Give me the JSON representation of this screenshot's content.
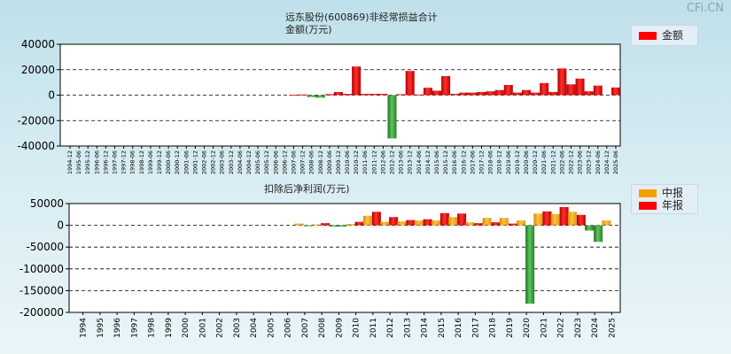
{
  "watermark": "CFi.CN",
  "chart_data": [
    {
      "type": "bar",
      "title": "远东股份(600869)非经常损益合计",
      "ylabel": "金额(万元)",
      "ylim": [
        -40000,
        40000
      ],
      "yticks": [
        40000,
        20000,
        0,
        -20000,
        -40000
      ],
      "grid": true,
      "legend": [
        "金额"
      ],
      "categories": [
        "1994-12",
        "1995-06",
        "1995-12",
        "1996-06",
        "1996-12",
        "1997-06",
        "1997-12",
        "1998-06",
        "1998-12",
        "1999-06",
        "1999-12",
        "2000-06",
        "2000-12",
        "2001-06",
        "2001-12",
        "2002-06",
        "2002-12",
        "2003-06",
        "2003-12",
        "2004-06",
        "2004-12",
        "2005-06",
        "2005-12",
        "2006-06",
        "2006-12",
        "2007-06",
        "2007-12",
        "2008-06",
        "2008-12",
        "2009-06",
        "2009-12",
        "2010-06",
        "2010-12",
        "2011-06",
        "2011-12",
        "2012-06",
        "2012-12",
        "2013-06",
        "2013-12",
        "2014-06",
        "2014-12",
        "2015-06",
        "2015-12",
        "2016-06",
        "2016-12",
        "2017-06",
        "2017-12",
        "2018-06",
        "2018-12",
        "2019-06",
        "2019-12",
        "2020-06",
        "2020-12",
        "2021-06",
        "2021-12",
        "2022-06",
        "2022-12",
        "2023-06",
        "2023-12",
        "2024-06",
        "2024-12",
        "2025-06"
      ],
      "values": [
        null,
        null,
        null,
        null,
        null,
        null,
        null,
        null,
        null,
        null,
        null,
        null,
        null,
        null,
        null,
        null,
        null,
        null,
        null,
        null,
        null,
        null,
        null,
        null,
        null,
        300,
        500,
        -1500,
        -2000,
        800,
        2500,
        1000,
        22500,
        1000,
        1000,
        1000,
        -34000,
        700,
        19000,
        500,
        5800,
        3500,
        15000,
        1000,
        2000,
        2000,
        2500,
        3000,
        4000,
        8000,
        2000,
        4000,
        2000,
        9500,
        2500,
        21000,
        8500,
        13000,
        3000,
        7500,
        null,
        6000
      ]
    },
    {
      "type": "bar",
      "title": "扣除后净利润(万元)",
      "ylim": [
        -200000,
        50000
      ],
      "yticks": [
        50000,
        0,
        -50000,
        -100000,
        -150000,
        -200000
      ],
      "grid": true,
      "legend": [
        "中报",
        "年报"
      ],
      "categories": [
        "1994",
        "1995",
        "1996",
        "1997",
        "1998",
        "1999",
        "2000",
        "2001",
        "2002",
        "2003",
        "2004",
        "2005",
        "2006",
        "2007",
        "2008",
        "2009",
        "2010",
        "2011",
        "2012",
        "2013",
        "2014",
        "2015",
        "2016",
        "2017",
        "2018",
        "2019",
        "2020",
        "2021",
        "2022",
        "2023",
        "2024",
        "2025"
      ],
      "series": [
        {
          "name": "中报",
          "values": [
            null,
            null,
            null,
            null,
            null,
            null,
            null,
            null,
            null,
            null,
            null,
            null,
            null,
            4000,
            2000,
            -3000,
            3000,
            22000,
            8000,
            9000,
            11000,
            11000,
            19000,
            7000,
            17000,
            17000,
            11000,
            27000,
            26000,
            31000,
            -12000,
            11000
          ]
        },
        {
          "name": "年报",
          "values": [
            null,
            null,
            null,
            null,
            null,
            null,
            null,
            null,
            null,
            null,
            null,
            null,
            null,
            -2000,
            5000,
            -3000,
            8000,
            31000,
            19000,
            12000,
            14000,
            28000,
            27000,
            5000,
            7000,
            4000,
            -180000,
            32000,
            42000,
            24000,
            -38000,
            null
          ]
        }
      ]
    }
  ]
}
